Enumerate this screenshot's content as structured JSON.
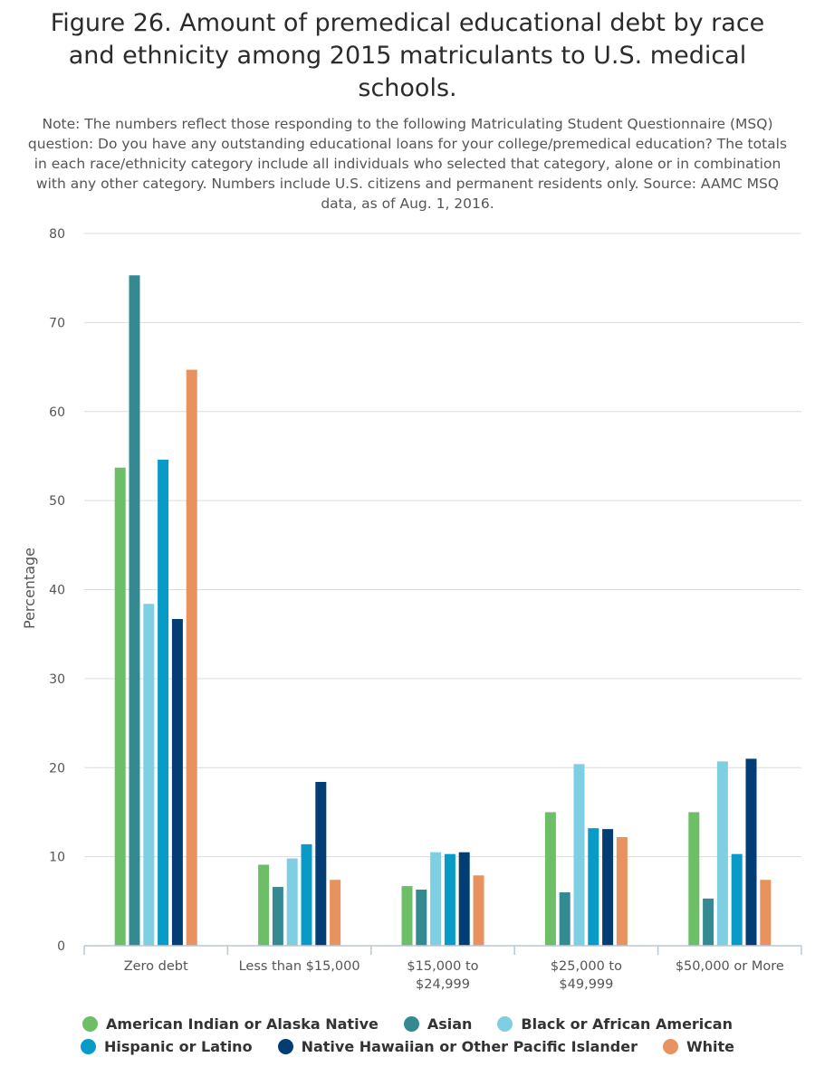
{
  "chart_data": {
    "type": "bar",
    "title": "Figure 26. Amount of premedical educational debt by race and ethnicity among 2015 matriculants to U.S. medical schools.",
    "subtitle": "Note: The numbers reflect those responding to the following Matriculating Student Questionnaire (MSQ) question: Do you have any outstanding educational loans for your college/premedical education? The totals in each race/ethnicity category include all individuals who selected that category, alone or in combination with any other category. Numbers include U.S. citizens and permanent residents only. Source: AAMC MSQ data, as of Aug. 1, 2016.",
    "xlabel": "",
    "ylabel": "Percentage",
    "ylim": [
      0,
      80
    ],
    "yticks": [
      0,
      10,
      20,
      30,
      40,
      50,
      60,
      70,
      80
    ],
    "grid": true,
    "legend_position": "bottom",
    "categories": [
      [
        "Zero debt"
      ],
      [
        "Less than $15,000"
      ],
      [
        "$15,000 to",
        "$24,999"
      ],
      [
        "$25,000 to",
        "$49,999"
      ],
      [
        "$50,000 or More"
      ]
    ],
    "series": [
      {
        "name": "American Indian or Alaska Native",
        "color": "#6dbf67",
        "values": [
          53.7,
          9.1,
          6.7,
          15.0,
          15.0
        ]
      },
      {
        "name": "Asian",
        "color": "#348a91",
        "values": [
          75.3,
          6.6,
          6.3,
          6.0,
          5.3
        ]
      },
      {
        "name": "Black or African American",
        "color": "#7fcfe3",
        "values": [
          38.4,
          9.8,
          10.5,
          20.4,
          20.7
        ]
      },
      {
        "name": "Hispanic or Latino",
        "color": "#089bc8",
        "values": [
          54.6,
          11.4,
          10.3,
          13.2,
          10.3
        ]
      },
      {
        "name": "Native Hawaiian or Other Pacific Islander",
        "color": "#023d73",
        "values": [
          36.7,
          18.4,
          10.5,
          13.1,
          21.0
        ]
      },
      {
        "name": "White",
        "color": "#e8925f",
        "values": [
          64.7,
          7.4,
          7.9,
          12.2,
          7.4
        ]
      }
    ]
  }
}
